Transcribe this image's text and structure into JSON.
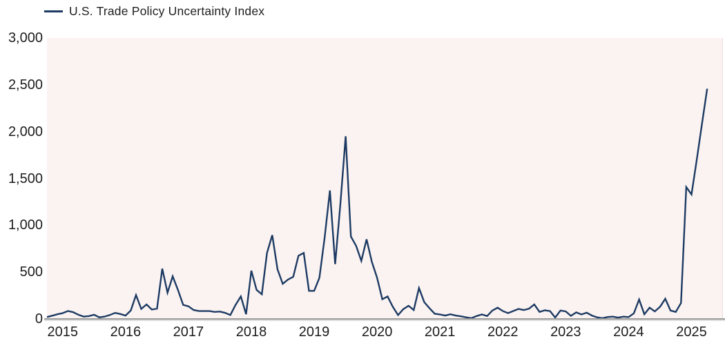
{
  "legend": {
    "label": "U.S. Trade Policy Uncertainty Index"
  },
  "colors": {
    "line": "#1c3a63",
    "plot_background": "#fbf3f1",
    "plot_right_border": "#ecdcda",
    "axis_line": "#9b9b9b",
    "text": "#1c1c1c"
  },
  "chart_data": {
    "type": "line",
    "title": "U.S. Trade Policy Uncertainty Index",
    "xlabel": "",
    "ylabel": "",
    "ylim": [
      0,
      3000
    ],
    "grid": false,
    "legend_position": "top-left",
    "y_ticks": [
      0,
      500,
      1000,
      1500,
      2000,
      2500,
      3000
    ],
    "y_tick_labels": [
      "0",
      "500",
      "1,000",
      "1,500",
      "2,000",
      "2,500",
      "3,000"
    ],
    "x_tick_labels": [
      "2015",
      "2016",
      "2017",
      "2018",
      "2019",
      "2020",
      "2021",
      "2022",
      "2023",
      "2024",
      "2025"
    ],
    "x_axis_span_months": 129,
    "x": [
      "2014-10",
      "2014-11",
      "2014-12",
      "2015-01",
      "2015-02",
      "2015-03",
      "2015-04",
      "2015-05",
      "2015-06",
      "2015-07",
      "2015-08",
      "2015-09",
      "2015-10",
      "2015-11",
      "2015-12",
      "2016-01",
      "2016-02",
      "2016-03",
      "2016-04",
      "2016-05",
      "2016-06",
      "2016-07",
      "2016-08",
      "2016-09",
      "2016-10",
      "2016-11",
      "2016-12",
      "2017-01",
      "2017-02",
      "2017-03",
      "2017-04",
      "2017-05",
      "2017-06",
      "2017-07",
      "2017-08",
      "2017-09",
      "2017-10",
      "2017-11",
      "2017-12",
      "2018-01",
      "2018-02",
      "2018-03",
      "2018-04",
      "2018-05",
      "2018-06",
      "2018-07",
      "2018-08",
      "2018-09",
      "2018-10",
      "2018-11",
      "2018-12",
      "2019-01",
      "2019-02",
      "2019-03",
      "2019-04",
      "2019-05",
      "2019-06",
      "2019-07",
      "2019-08",
      "2019-09",
      "2019-10",
      "2019-11",
      "2019-12",
      "2020-01",
      "2020-02",
      "2020-03",
      "2020-04",
      "2020-05",
      "2020-06",
      "2020-07",
      "2020-08",
      "2020-09",
      "2020-10",
      "2020-11",
      "2020-12",
      "2021-01",
      "2021-02",
      "2021-03",
      "2021-04",
      "2021-05",
      "2021-06",
      "2021-07",
      "2021-08",
      "2021-09",
      "2021-10",
      "2021-11",
      "2021-12",
      "2022-01",
      "2022-02",
      "2022-03",
      "2022-04",
      "2022-05",
      "2022-06",
      "2022-07",
      "2022-08",
      "2022-09",
      "2022-10",
      "2022-11",
      "2022-12",
      "2023-01",
      "2023-02",
      "2023-03",
      "2023-04",
      "2023-05",
      "2023-06",
      "2023-07",
      "2023-08",
      "2023-09",
      "2023-10",
      "2023-11",
      "2023-12",
      "2024-01",
      "2024-02",
      "2024-03",
      "2024-04",
      "2024-05",
      "2024-06",
      "2024-07",
      "2024-08",
      "2024-09",
      "2024-10",
      "2024-11",
      "2024-12",
      "2025-01",
      "2025-02",
      "2025-03",
      "2025-04"
    ],
    "series": [
      {
        "name": "U.S. Trade Policy Uncertainty Index",
        "color": "#1c3a63",
        "values": [
          20,
          35,
          50,
          62,
          85,
          72,
          45,
          25,
          30,
          45,
          17,
          25,
          42,
          65,
          53,
          36,
          90,
          255,
          107,
          155,
          100,
          110,
          537,
          280,
          455,
          310,
          150,
          135,
          95,
          84,
          84,
          84,
          75,
          79,
          65,
          42,
          150,
          240,
          50,
          515,
          310,
          263,
          705,
          895,
          530,
          375,
          420,
          450,
          675,
          705,
          300,
          300,
          440,
          870,
          1372,
          585,
          1230,
          1950,
          880,
          780,
          620,
          850,
          610,
          440,
          210,
          240,
          130,
          41,
          105,
          140,
          95,
          330,
          180,
          115,
          55,
          48,
          36,
          50,
          36,
          28,
          17,
          8,
          31,
          48,
          31,
          90,
          120,
          84,
          62,
          85,
          107,
          95,
          110,
          155,
          75,
          92,
          84,
          15,
          90,
          80,
          33,
          70,
          48,
          67,
          36,
          17,
          8,
          21,
          24,
          14,
          24,
          20,
          60,
          208,
          50,
          120,
          80,
          130,
          215,
          90,
          75,
          170,
          1408,
          1330,
          1700,
          2080,
          2458
        ]
      }
    ]
  }
}
